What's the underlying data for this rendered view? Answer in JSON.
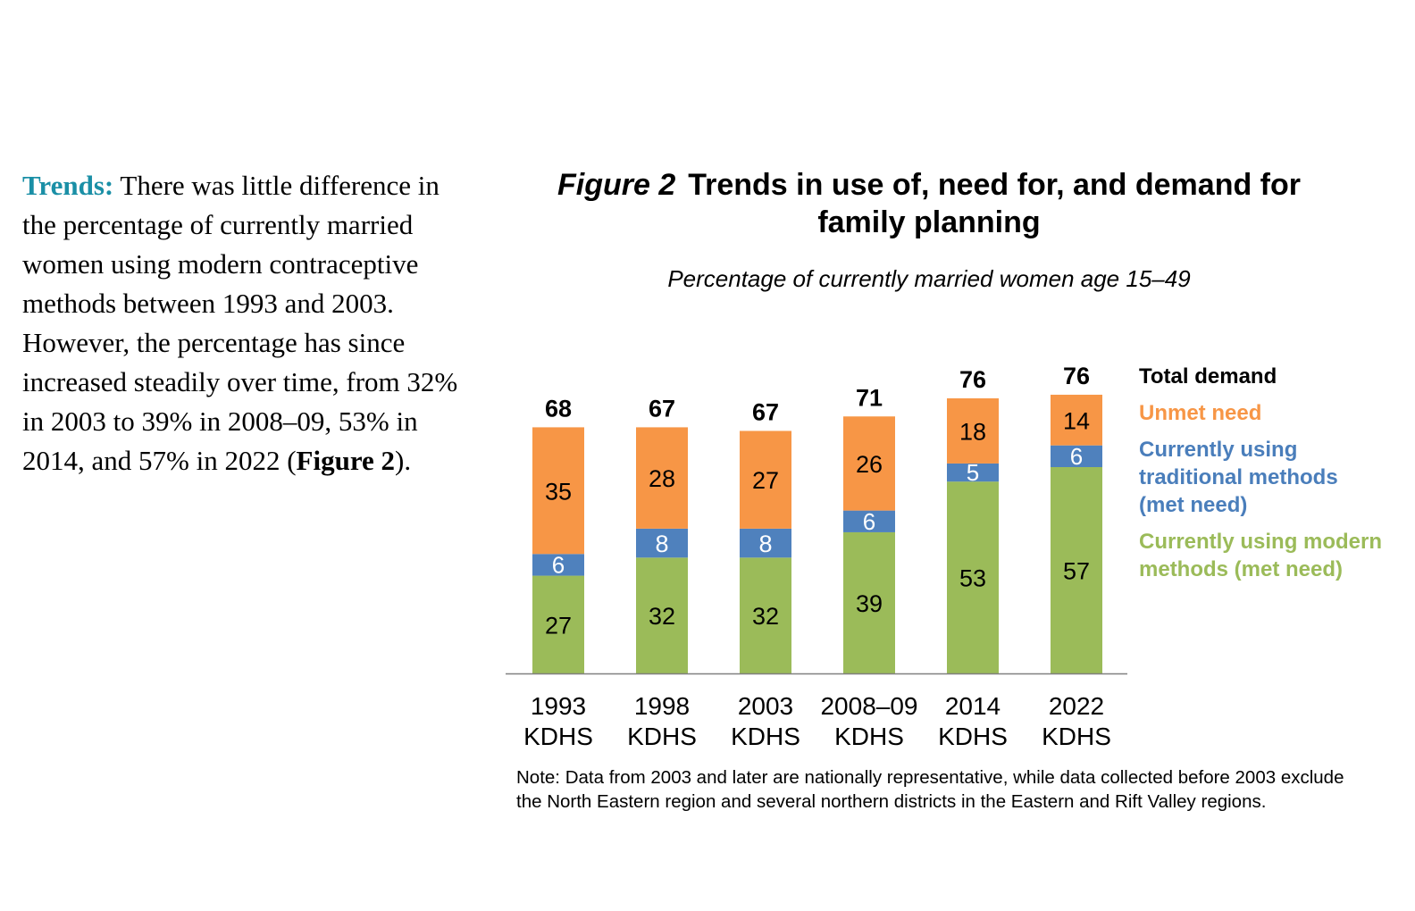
{
  "intro": {
    "lead": "Trends:",
    "text": " There was little difference in the percentage of currently married women using modern contraceptive methods between 1993 and 2003. However, the percentage has since increased steadily over time, from 32% in 2003 to 39% in 2008–09, 53% in 2014, and 57% in 2022 (",
    "ref": "Figure 2",
    "tail": ")."
  },
  "figure": {
    "number": "Figure 2",
    "title": "Trends in use of, need for, and demand for family planning",
    "subtitle": "Percentage of currently married women age 15–49",
    "note": "Note: Data from 2003 and later are nationally representative, while data collected before 2003 exclude the North Eastern region and several northern districts in the Eastern and Rift Valley regions."
  },
  "legend": {
    "total": "Total demand",
    "unmet": "Unmet need",
    "traditional": "Currently using traditional methods (met need)",
    "modern": "Currently using modern methods (met need)"
  },
  "colors": {
    "modern": "#9bbb59",
    "traditional": "#4f81bd",
    "unmet": "#f79646",
    "legend_total": "#000000",
    "legend_unmet": "#f79646",
    "legend_traditional": "#4a7ebb",
    "legend_modern": "#9bbb59"
  },
  "chart_data": {
    "type": "bar",
    "stacked": true,
    "categories": [
      [
        "1993",
        "KDHS"
      ],
      [
        "1998",
        "KDHS"
      ],
      [
        "2003",
        "KDHS"
      ],
      [
        "2008–09",
        "KDHS"
      ],
      [
        "2014",
        "KDHS"
      ],
      [
        "2022",
        "KDHS"
      ]
    ],
    "series": [
      {
        "name": "Currently using modern methods (met need)",
        "values": [
          27,
          32,
          32,
          39,
          53,
          57
        ]
      },
      {
        "name": "Currently using traditional methods (met need)",
        "values": [
          6,
          8,
          8,
          6,
          5,
          6
        ]
      },
      {
        "name": "Unmet need",
        "values": [
          35,
          28,
          27,
          26,
          18,
          14
        ]
      }
    ],
    "totals_name": "Total demand",
    "totals": [
      68,
      67,
      67,
      71,
      76,
      76
    ],
    "ylim": [
      0,
      76
    ],
    "legend_position": "right",
    "grid": false
  }
}
